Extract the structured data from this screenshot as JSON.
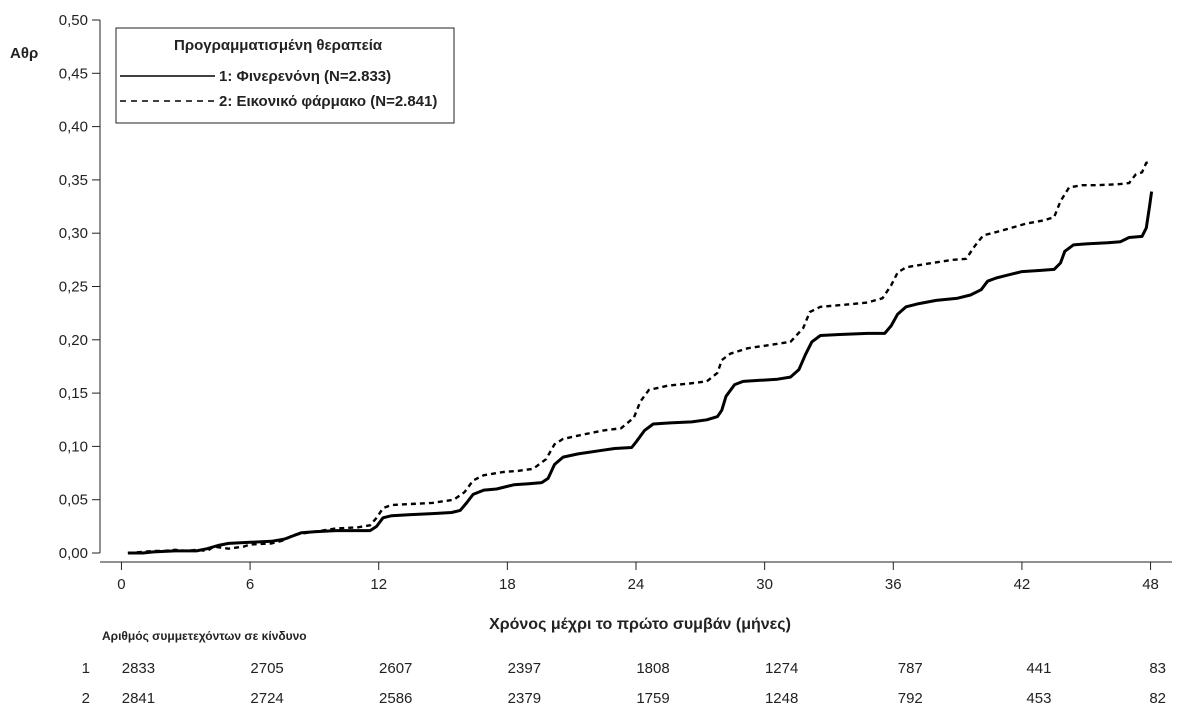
{
  "chart_data": {
    "type": "line",
    "title": "",
    "ylabel": "Αθρ",
    "xlabel": "Χρόνος μέχρι το πρώτο συμβάν (μήνες)",
    "xlim": [
      -1,
      49
    ],
    "ylim": [
      0,
      0.5
    ],
    "x_ticks": [
      0,
      6,
      12,
      18,
      24,
      30,
      36,
      42,
      48
    ],
    "x_tick_labels": [
      "0",
      "6",
      "12",
      "18",
      "24",
      "30",
      "36",
      "42",
      "48"
    ],
    "y_ticks": [
      0,
      0.05,
      0.1,
      0.15,
      0.2,
      0.25,
      0.3,
      0.35,
      0.4,
      0.45,
      0.5
    ],
    "y_tick_labels": [
      "0,00",
      "0,05",
      "0,10",
      "0,15",
      "0,20",
      "0,25",
      "0,30",
      "0,35",
      "0,40",
      "0,45",
      "0,50"
    ],
    "grid": false,
    "legend": {
      "title": "Προγραμματισμένη θεραπεία",
      "placement": "top-left"
    },
    "series": [
      {
        "name": "1: Φινερενόνη (N=2.833)",
        "style": "solid",
        "color": "#000000",
        "points": [
          [
            0.3,
            0.0
          ],
          [
            1.0,
            0.0
          ],
          [
            1.5,
            0.001
          ],
          [
            2.5,
            0.002
          ],
          [
            3.5,
            0.002
          ],
          [
            4.0,
            0.004
          ],
          [
            4.5,
            0.007
          ],
          [
            5.0,
            0.009
          ],
          [
            6.0,
            0.01
          ],
          [
            7.0,
            0.011
          ],
          [
            7.6,
            0.013
          ],
          [
            8.0,
            0.016
          ],
          [
            8.4,
            0.019
          ],
          [
            9.0,
            0.02
          ],
          [
            10.0,
            0.021
          ],
          [
            11.0,
            0.021
          ],
          [
            11.6,
            0.021
          ],
          [
            11.9,
            0.025
          ],
          [
            12.2,
            0.033
          ],
          [
            12.6,
            0.035
          ],
          [
            13.5,
            0.036
          ],
          [
            14.5,
            0.037
          ],
          [
            15.4,
            0.038
          ],
          [
            15.8,
            0.04
          ],
          [
            16.1,
            0.047
          ],
          [
            16.4,
            0.055
          ],
          [
            16.9,
            0.059
          ],
          [
            17.5,
            0.06
          ],
          [
            18.3,
            0.064
          ],
          [
            19.0,
            0.065
          ],
          [
            19.6,
            0.066
          ],
          [
            19.9,
            0.07
          ],
          [
            20.2,
            0.083
          ],
          [
            20.6,
            0.09
          ],
          [
            21.3,
            0.093
          ],
          [
            22.3,
            0.096
          ],
          [
            23.0,
            0.098
          ],
          [
            23.8,
            0.099
          ],
          [
            24.0,
            0.104
          ],
          [
            24.4,
            0.115
          ],
          [
            24.8,
            0.121
          ],
          [
            25.6,
            0.122
          ],
          [
            26.6,
            0.123
          ],
          [
            27.3,
            0.125
          ],
          [
            27.8,
            0.128
          ],
          [
            28.0,
            0.134
          ],
          [
            28.2,
            0.147
          ],
          [
            28.6,
            0.158
          ],
          [
            29.0,
            0.161
          ],
          [
            29.8,
            0.162
          ],
          [
            30.6,
            0.163
          ],
          [
            31.2,
            0.165
          ],
          [
            31.6,
            0.172
          ],
          [
            31.9,
            0.186
          ],
          [
            32.2,
            0.198
          ],
          [
            32.6,
            0.204
          ],
          [
            33.5,
            0.205
          ],
          [
            34.8,
            0.206
          ],
          [
            35.6,
            0.206
          ],
          [
            35.9,
            0.213
          ],
          [
            36.2,
            0.224
          ],
          [
            36.6,
            0.231
          ],
          [
            37.2,
            0.234
          ],
          [
            38.0,
            0.237
          ],
          [
            39.0,
            0.239
          ],
          [
            39.6,
            0.242
          ],
          [
            40.1,
            0.247
          ],
          [
            40.4,
            0.255
          ],
          [
            40.8,
            0.258
          ],
          [
            41.2,
            0.26
          ],
          [
            41.6,
            0.262
          ],
          [
            42.0,
            0.264
          ],
          [
            42.8,
            0.265
          ],
          [
            43.5,
            0.266
          ],
          [
            43.8,
            0.272
          ],
          [
            44.0,
            0.283
          ],
          [
            44.4,
            0.289
          ],
          [
            45.0,
            0.29
          ],
          [
            46.0,
            0.291
          ],
          [
            46.6,
            0.292
          ],
          [
            47.0,
            0.296
          ],
          [
            47.6,
            0.297
          ],
          [
            47.8,
            0.305
          ],
          [
            47.95,
            0.325
          ],
          [
            48.05,
            0.339
          ]
        ]
      },
      {
        "name": "2: Εικονικό φάρμακο (N=2.841)",
        "style": "dashed",
        "color": "#000000",
        "points": [
          [
            0.3,
            0.0
          ],
          [
            1.0,
            0.001
          ],
          [
            1.5,
            0.002
          ],
          [
            2.0,
            0.002
          ],
          [
            2.5,
            0.003
          ],
          [
            3.0,
            0.002
          ],
          [
            3.5,
            0.003
          ],
          [
            4.0,
            0.002
          ],
          [
            4.3,
            0.006
          ],
          [
            5.0,
            0.004
          ],
          [
            5.7,
            0.006
          ],
          [
            6.0,
            0.008
          ],
          [
            7.0,
            0.009
          ],
          [
            7.6,
            0.012
          ],
          [
            8.0,
            0.017
          ],
          [
            9.0,
            0.02
          ],
          [
            10.0,
            0.023
          ],
          [
            11.0,
            0.024
          ],
          [
            11.6,
            0.026
          ],
          [
            11.9,
            0.033
          ],
          [
            12.2,
            0.042
          ],
          [
            12.6,
            0.045
          ],
          [
            13.5,
            0.046
          ],
          [
            14.5,
            0.047
          ],
          [
            15.5,
            0.05
          ],
          [
            16.0,
            0.057
          ],
          [
            16.4,
            0.068
          ],
          [
            16.9,
            0.073
          ],
          [
            17.8,
            0.076
          ],
          [
            18.5,
            0.077
          ],
          [
            19.2,
            0.079
          ],
          [
            19.8,
            0.088
          ],
          [
            20.2,
            0.102
          ],
          [
            20.6,
            0.107
          ],
          [
            21.5,
            0.111
          ],
          [
            22.5,
            0.115
          ],
          [
            23.3,
            0.117
          ],
          [
            23.9,
            0.127
          ],
          [
            24.2,
            0.142
          ],
          [
            24.6,
            0.153
          ],
          [
            25.5,
            0.157
          ],
          [
            26.5,
            0.159
          ],
          [
            27.3,
            0.161
          ],
          [
            27.8,
            0.169
          ],
          [
            28.0,
            0.181
          ],
          [
            28.4,
            0.187
          ],
          [
            29.2,
            0.192
          ],
          [
            30.2,
            0.195
          ],
          [
            31.2,
            0.198
          ],
          [
            31.8,
            0.211
          ],
          [
            32.1,
            0.226
          ],
          [
            32.6,
            0.231
          ],
          [
            33.8,
            0.233
          ],
          [
            34.8,
            0.235
          ],
          [
            35.5,
            0.239
          ],
          [
            35.9,
            0.251
          ],
          [
            36.2,
            0.263
          ],
          [
            36.6,
            0.268
          ],
          [
            37.8,
            0.272
          ],
          [
            38.8,
            0.275
          ],
          [
            39.4,
            0.276
          ],
          [
            39.8,
            0.288
          ],
          [
            40.2,
            0.298
          ],
          [
            40.8,
            0.301
          ],
          [
            41.5,
            0.305
          ],
          [
            42.2,
            0.309
          ],
          [
            43.0,
            0.312
          ],
          [
            43.5,
            0.315
          ],
          [
            43.8,
            0.33
          ],
          [
            44.2,
            0.343
          ],
          [
            44.8,
            0.345
          ],
          [
            45.5,
            0.345
          ],
          [
            46.5,
            0.346
          ],
          [
            47.0,
            0.347
          ],
          [
            47.3,
            0.355
          ],
          [
            47.6,
            0.357
          ],
          [
            47.8,
            0.366
          ],
          [
            48.0,
            0.367
          ]
        ]
      }
    ],
    "risk_table": {
      "title": "Αριθμός συμμετεχόντων σε κίνδυνο",
      "rows": [
        {
          "label": "1",
          "values": [
            "2833",
            "2705",
            "2607",
            "2397",
            "1808",
            "1274",
            "787",
            "441",
            "83"
          ]
        },
        {
          "label": "2",
          "values": [
            "2841",
            "2724",
            "2586",
            "2379",
            "1759",
            "1248",
            "792",
            "453",
            "82"
          ]
        }
      ]
    }
  }
}
